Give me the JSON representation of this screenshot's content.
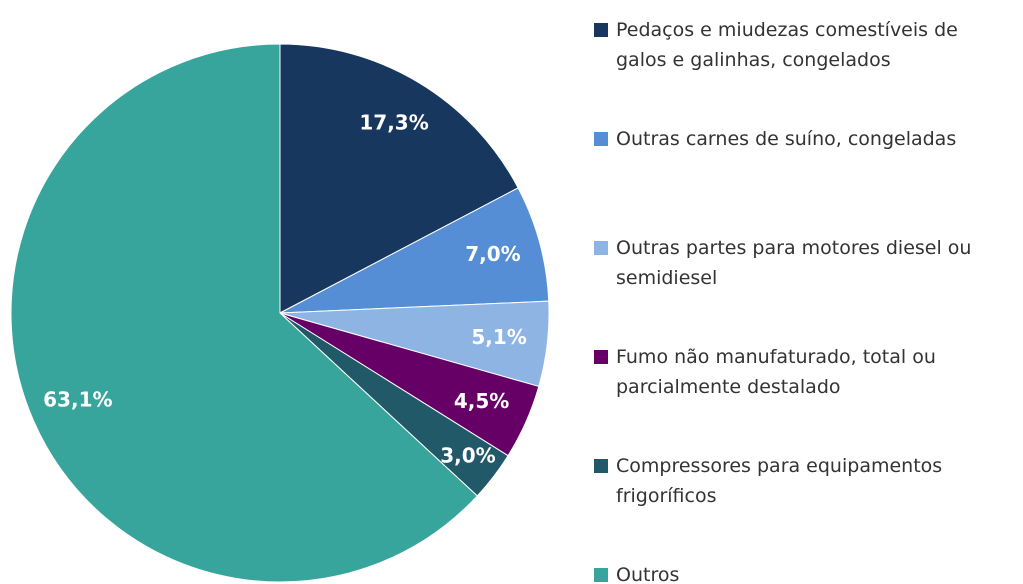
{
  "chart_data": {
    "type": "pie",
    "categories": [
      "Pedaços e miudezas comestíveis de galos e galinhas, congelados",
      "Outras carnes de suíno, congeladas",
      "Outras partes para motores diesel ou semidiesel",
      "Fumo não manufaturado, total ou parcialmente destalado",
      "Compressores para equipamentos frigoríficos",
      "Outros"
    ],
    "values": [
      17.3,
      7.0,
      5.1,
      4.5,
      3.0,
      63.1
    ],
    "value_labels": [
      "17,3%",
      "7,0%",
      "5,1%",
      "4,5%",
      "3,0%",
      "63,1%"
    ],
    "colors": [
      "#17375e",
      "#558ed5",
      "#8eb4e3",
      "#660066",
      "#215968",
      "#38a59d"
    ],
    "legend": "right"
  }
}
